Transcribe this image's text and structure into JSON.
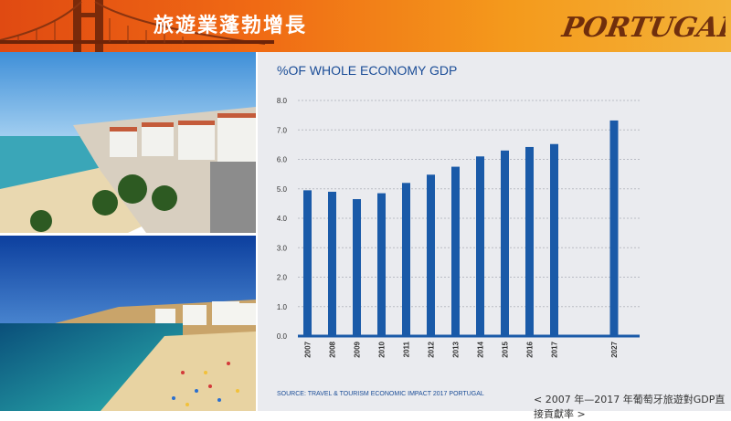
{
  "header": {
    "title": "旅遊業蓬勃增長",
    "logo_text": "PORTUGAL"
  },
  "chart_data": {
    "type": "bar",
    "title": "%OF WHOLE ECONOMY GDP",
    "xlabel": "",
    "ylabel": "",
    "categories": [
      "2007",
      "2008",
      "2009",
      "2010",
      "2011",
      "2012",
      "2013",
      "2014",
      "2015",
      "2016",
      "2017",
      "2027"
    ],
    "values": [
      4.95,
      4.9,
      4.65,
      4.85,
      5.2,
      5.48,
      5.75,
      6.1,
      6.3,
      6.42,
      6.52,
      7.32
    ],
    "ylim": [
      0,
      8
    ],
    "yticks": [
      "0.0",
      "1.0",
      "2.0",
      "3.0",
      "4.0",
      "5.0",
      "6.0",
      "7.0",
      "8.0"
    ],
    "grid": true,
    "bar_color": "#1a5aa8"
  },
  "footer": {
    "source": "SOURCE: TRAVEL & TOURISM ECONOMIC IMPACT 2017 PORTUGAL",
    "caption": "< 2007 年—2017 年葡萄牙旅遊對GDP直接貢獻率 >"
  },
  "colors": {
    "accent": "#f06a14",
    "chart_blue": "#1a5aa8",
    "title_blue": "#1b4d97",
    "panel": "#eaebef"
  }
}
